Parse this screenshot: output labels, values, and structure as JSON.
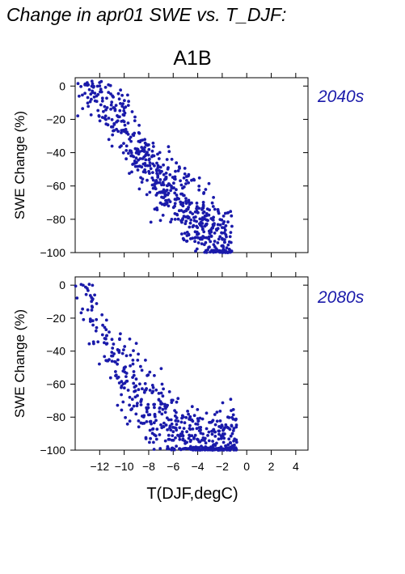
{
  "figure": {
    "title": "Change in apr01 SWE vs. T_DJF:",
    "scenario": "A1B",
    "xlabel": "T(DJF,degC)"
  },
  "chart_data": [
    {
      "type": "scatter",
      "title": "2040s",
      "xlabel": "",
      "ylabel": "SWE Change (%)",
      "xlim": [
        -14,
        5
      ],
      "ylim": [
        -100,
        5
      ],
      "xticks": [
        -12,
        -10,
        -8,
        -6,
        -4,
        -2,
        0,
        2,
        4
      ],
      "yticks": [
        0,
        -20,
        -40,
        -60,
        -80,
        -100
      ],
      "xtick_labels_visible": false,
      "color": "#1a1aaa",
      "series": [
        {
          "points": []
        }
      ],
      "cloud_spec": {
        "n": 620,
        "x_range": [
          -13.8,
          -1.2
        ],
        "trend_at_x": [
          [
            -13,
            0
          ],
          [
            -10,
            -25
          ],
          [
            -8,
            -50
          ],
          [
            -6,
            -65
          ],
          [
            -4,
            -80
          ],
          [
            -2,
            -95
          ]
        ],
        "floor_value": -100
      }
    },
    {
      "type": "scatter",
      "title": "2080s",
      "xlabel": "T(DJF,degC)",
      "ylabel": "SWE Change (%)",
      "xlim": [
        -14,
        5
      ],
      "ylim": [
        -100,
        5
      ],
      "xticks": [
        -12,
        -10,
        -8,
        -6,
        -4,
        -2,
        0,
        2,
        4
      ],
      "yticks": [
        0,
        -20,
        -40,
        -60,
        -80,
        -100
      ],
      "xtick_labels_visible": true,
      "color": "#1a1aaa",
      "series": [
        {
          "points": []
        }
      ],
      "cloud_spec": {
        "n": 560,
        "x_range": [
          -14,
          -0.8
        ],
        "trend_at_x": [
          [
            -13,
            -10
          ],
          [
            -11,
            -45
          ],
          [
            -9,
            -65
          ],
          [
            -7,
            -82
          ],
          [
            -5,
            -92
          ],
          [
            -3,
            -98
          ]
        ],
        "floor_value": -100
      }
    }
  ]
}
